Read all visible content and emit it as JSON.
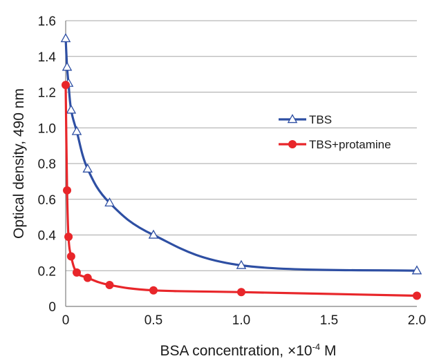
{
  "chart_data": {
    "type": "line",
    "title": "",
    "xlabel_prefix": "BSA concentration, ×10",
    "xlabel_exponent": "-4",
    "xlabel_suffix": " M",
    "ylabel": "Optical density, 490 nm",
    "xlim": [
      0,
      2.0
    ],
    "ylim": [
      0,
      1.6
    ],
    "x_ticks": [
      0,
      0.5,
      1.0,
      1.5,
      2.0
    ],
    "x_tick_labels": [
      "0",
      "0.5",
      "1.0",
      "1.5",
      "2.0"
    ],
    "y_ticks": [
      0,
      0.2,
      0.4,
      0.6,
      0.8,
      1.0,
      1.2,
      1.4,
      1.6
    ],
    "y_tick_labels": [
      "0",
      "0.2",
      "0.4",
      "0.6",
      "0.8",
      "1.0",
      "1.2",
      "1.4",
      "1.6"
    ],
    "grid": "horizontal",
    "legend_position": "right-center",
    "series": [
      {
        "name": "TBS",
        "color": "#2e4fa3",
        "marker": "open-triangle",
        "x": [
          0,
          0.008,
          0.016,
          0.031,
          0.063,
          0.125,
          0.25,
          0.5,
          1.0,
          2.0
        ],
        "y": [
          1.5,
          1.34,
          1.25,
          1.1,
          0.98,
          0.77,
          0.58,
          0.4,
          0.23,
          0.2
        ]
      },
      {
        "name": "TBS+protamine",
        "color": "#e8262a",
        "marker": "filled-circle",
        "x": [
          0,
          0.008,
          0.016,
          0.031,
          0.063,
          0.125,
          0.25,
          0.5,
          1.0,
          2.0
        ],
        "y": [
          1.24,
          0.65,
          0.39,
          0.28,
          0.19,
          0.16,
          0.12,
          0.09,
          0.08,
          0.06
        ]
      }
    ]
  }
}
